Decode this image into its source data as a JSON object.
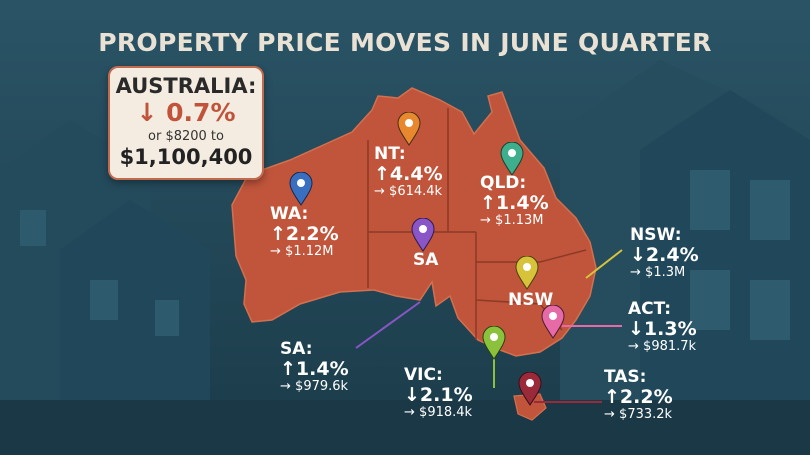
{
  "title": "PROPERTY PRICE MOVES IN JUNE QUARTER",
  "colors": {
    "background": "#1f4556",
    "map_fill": "#c0553b",
    "box_fill": "#f4ece0",
    "box_accent": "#c0533a",
    "text_light": "#ffffff",
    "title_color": "#e9e1d3"
  },
  "national": {
    "name": "AUSTRALIA:",
    "change_arrow": "↓",
    "change": "0.7%",
    "detail": "or $8200 to",
    "price": "$1,100,400"
  },
  "regions": [
    {
      "id": "nt",
      "name": "NT:",
      "arrow": "↑",
      "change": "4.4%",
      "price_arrow": "→",
      "price": "$614.4k",
      "pin_icon": "location-pin-icon",
      "pin_color": "#e8882e"
    },
    {
      "id": "qld",
      "name": "QLD:",
      "arrow": "↑",
      "change": "1.4%",
      "price_arrow": "→",
      "price": "$1.13M",
      "pin_icon": "location-pin-icon",
      "pin_color": "#3fae8c"
    },
    {
      "id": "wa",
      "name": "WA:",
      "arrow": "↑",
      "change": "2.2%",
      "price_arrow": "→",
      "price": "$1.12M",
      "pin_icon": "location-pin-icon",
      "pin_color": "#3a6fc0"
    },
    {
      "id": "nsw",
      "name": "NSW:",
      "arrow": "↓",
      "change": "2.4%",
      "price_arrow": "→",
      "price": "$1.3M",
      "pin_icon": "location-pin-icon",
      "pin_color": "#d7c33a"
    },
    {
      "id": "act",
      "name": "ACT:",
      "arrow": "↓",
      "change": "1.3%",
      "price_arrow": "→",
      "price": "$981.7k",
      "pin_icon": "location-pin-icon",
      "pin_color": "#e66aa6"
    },
    {
      "id": "sa",
      "name": "SA:",
      "arrow": "↑",
      "change": "1.4%",
      "price_arrow": "→",
      "price": "$979.6k",
      "pin_icon": "location-pin-icon",
      "pin_color": "#8a55c6"
    },
    {
      "id": "vic",
      "name": "VIC:",
      "arrow": "↓",
      "change": "2.1%",
      "price_arrow": "→",
      "price": "$918.4k",
      "pin_icon": "location-pin-icon",
      "pin_color": "#8bc13c"
    },
    {
      "id": "tas",
      "name": "TAS:",
      "arrow": "↑",
      "change": "2.2%",
      "price_arrow": "→",
      "price": "$733.2k",
      "pin_icon": "location-pin-icon",
      "pin_color": "#9a2a3a"
    }
  ],
  "map_labels": {
    "sa": "SA",
    "nsw": "NSW"
  }
}
